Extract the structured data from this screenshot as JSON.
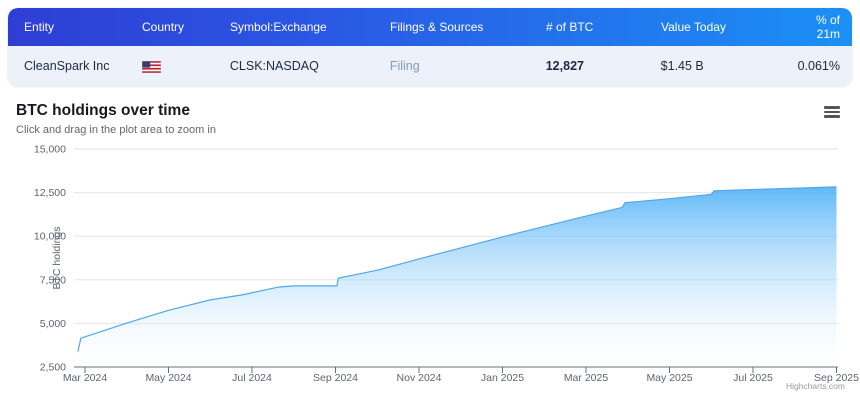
{
  "table": {
    "columns": [
      "Entity",
      "Country",
      "Symbol:Exchange",
      "Filings & Sources",
      "# of BTC",
      "Value Today",
      "% of 21m"
    ],
    "row": {
      "entity": "CleanSpark Inc",
      "country": "United States",
      "symbol": "CLSK:NASDAQ",
      "filing_label": "Filing",
      "btc": "12,827",
      "value_today": "$1.45 B",
      "pct_of_21m": "0.061%"
    },
    "colors": {
      "header_gradient_left": "#2e3ed4",
      "header_gradient_right": "#1b90f5",
      "row_bg": "#edf1f9",
      "link": "#7b9cc9"
    }
  },
  "chart": {
    "title": "BTC holdings over time",
    "subtitle": "Click and drag in the plot area to zoom in",
    "menu_icon": "hamburger-icon"
  },
  "chart_data": {
    "type": "area",
    "title": "BTC holdings over time",
    "subtitle": "Click and drag in the plot area to zoom in",
    "xlabel": "",
    "ylabel": "BTC holdings",
    "credit": "Highcharts.com",
    "ylim": [
      2500,
      15000
    ],
    "y_ticks": [
      2500,
      5000,
      7500,
      10000,
      12500,
      15000
    ],
    "x_tick_labels": [
      "Mar 2024",
      "May 2024",
      "Jul 2024",
      "Sep 2024",
      "Nov 2024",
      "Jan 2025",
      "Mar 2025",
      "May 2025",
      "Jul 2025",
      "Sep 2025"
    ],
    "grid": "on",
    "legend": "off",
    "series": [
      {
        "name": "BTC holdings",
        "points": [
          [
            "2024-02-26",
            3390
          ],
          [
            "2024-02-28",
            4150
          ],
          [
            "2024-03-15",
            4600
          ],
          [
            "2024-04-01",
            5020
          ],
          [
            "2024-05-01",
            5750
          ],
          [
            "2024-06-01",
            6350
          ],
          [
            "2024-06-25",
            6650
          ],
          [
            "2024-07-20",
            7080
          ],
          [
            "2024-08-01",
            7150
          ],
          [
            "2024-09-02",
            7150
          ],
          [
            "2024-09-03",
            7600
          ],
          [
            "2024-10-01",
            8050
          ],
          [
            "2024-11-01",
            8700
          ],
          [
            "2024-12-01",
            9330
          ],
          [
            "2025-01-01",
            9960
          ],
          [
            "2025-02-01",
            10560
          ],
          [
            "2025-03-01",
            11150
          ],
          [
            "2025-03-27",
            11650
          ],
          [
            "2025-03-29",
            11920
          ],
          [
            "2025-05-01",
            12150
          ],
          [
            "2025-06-01",
            12400
          ],
          [
            "2025-06-03",
            12600
          ],
          [
            "2025-07-01",
            12680
          ],
          [
            "2025-08-01",
            12750
          ],
          [
            "2025-09-01",
            12827
          ]
        ]
      }
    ],
    "colors": {
      "line": "#51a8e6",
      "fill_top": "#1e9bf5",
      "fill_bottom": "#ffffff",
      "grid": "#e6e6e6",
      "axis": "#66707a",
      "label": "#5b6570",
      "credit": "#999999"
    }
  }
}
